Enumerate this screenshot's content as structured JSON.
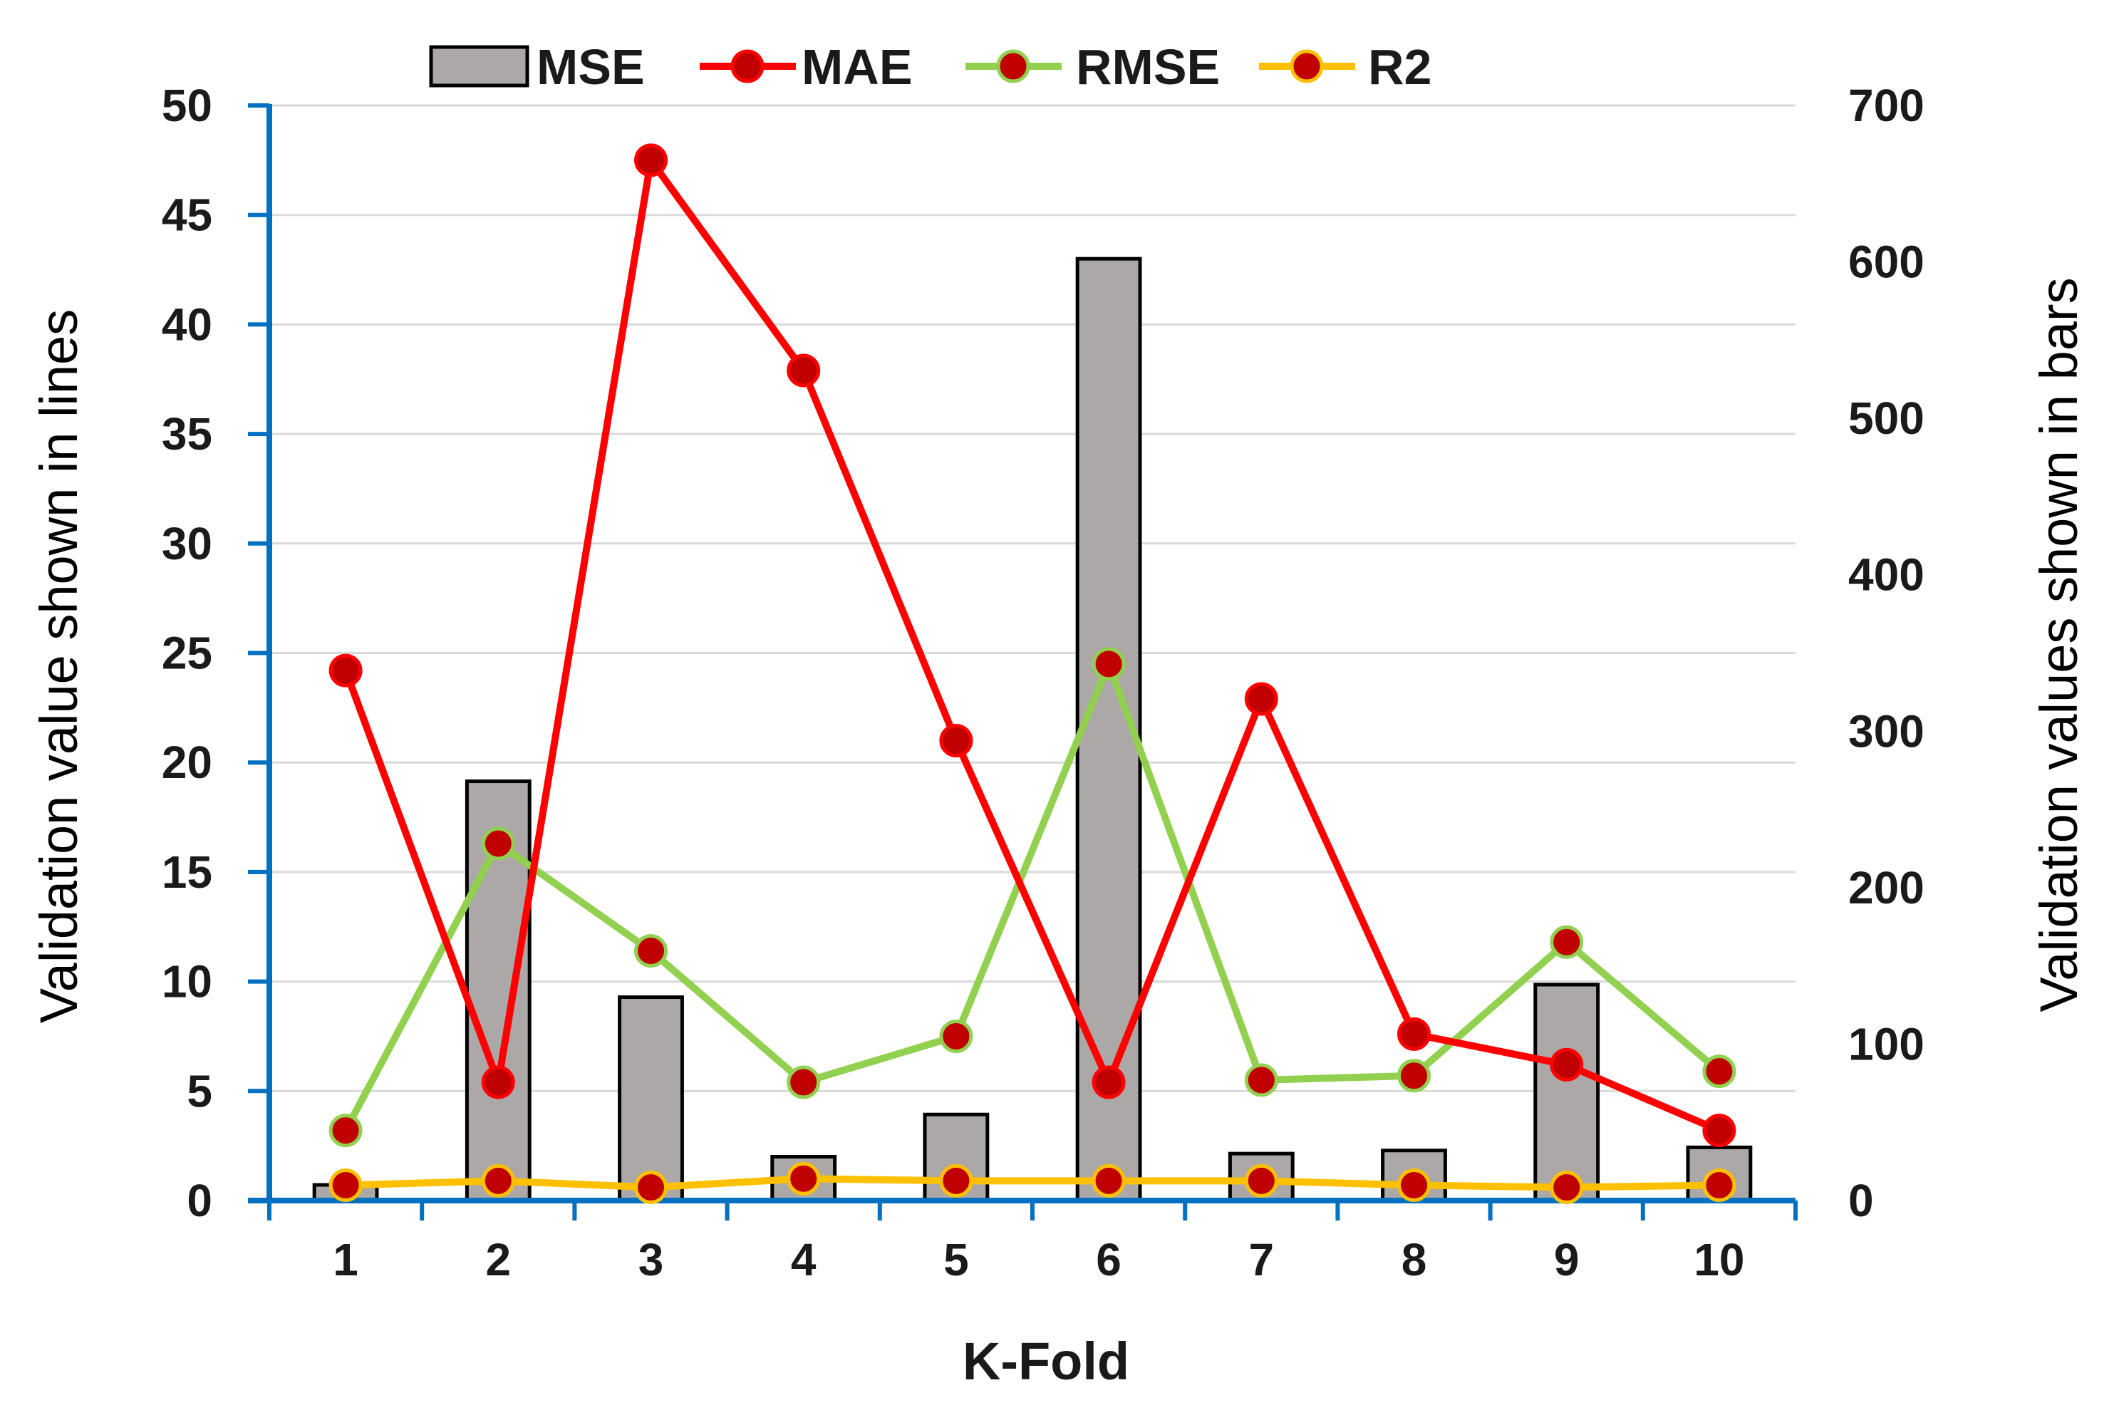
{
  "chart_data": {
    "type": "bar+line",
    "xlabel": "K-Fold",
    "ylabel_left": "Validation value shown in lines",
    "ylabel_right": "Validation values shown in bars",
    "categories": [
      "1",
      "2",
      "3",
      "4",
      "5",
      "6",
      "7",
      "8",
      "9",
      "10"
    ],
    "ylim_left": [
      0,
      50
    ],
    "yticks_left": [
      "0",
      "5",
      "10",
      "15",
      "20",
      "25",
      "30",
      "35",
      "40",
      "45",
      "50"
    ],
    "ylim_right": [
      0,
      700
    ],
    "yticks_right": [
      "0",
      "100",
      "200",
      "300",
      "400",
      "500",
      "600",
      "700"
    ],
    "grid": true,
    "legend_position": "top",
    "series": [
      {
        "name": "MSE",
        "kind": "bar",
        "axis": "right",
        "color": "#aca8a7",
        "values": [
          10,
          268,
          130,
          28,
          55,
          602,
          30,
          32,
          138,
          34
        ]
      },
      {
        "name": "MAE",
        "kind": "line",
        "axis": "left",
        "color": "#ff0000",
        "marker": "#c00000",
        "values": [
          24.2,
          5.4,
          47.5,
          37.9,
          21.0,
          5.4,
          22.9,
          7.6,
          6.2,
          3.2
        ]
      },
      {
        "name": "RMSE",
        "kind": "line",
        "axis": "left",
        "color": "#92d050",
        "marker": "#c00000",
        "values": [
          3.2,
          16.3,
          11.4,
          5.4,
          7.5,
          24.5,
          5.5,
          5.7,
          11.8,
          5.9
        ]
      },
      {
        "name": "R2",
        "kind": "line",
        "axis": "left",
        "color": "#ffc000",
        "marker": "#c00000",
        "values": [
          0.7,
          0.9,
          0.6,
          1.0,
          0.9,
          0.9,
          0.9,
          0.7,
          0.6,
          0.7
        ]
      }
    ]
  }
}
